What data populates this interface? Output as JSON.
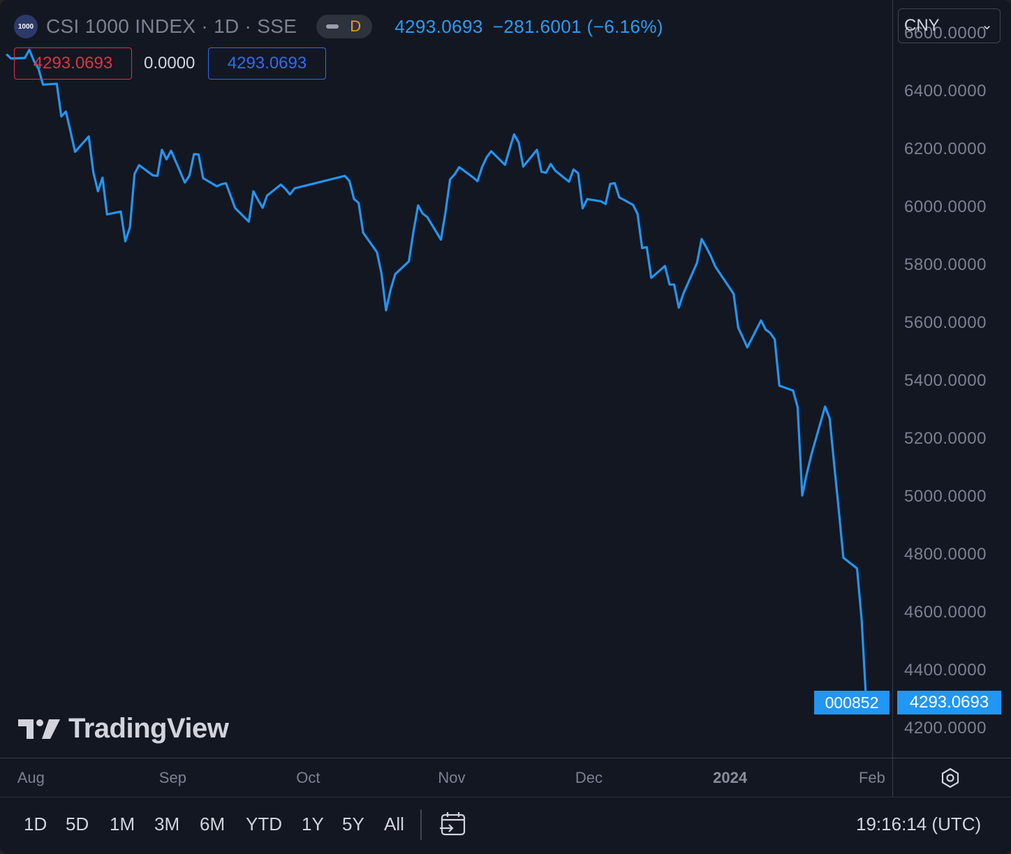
{
  "header": {
    "logo_text": "1000",
    "title": "CSI 1000 INDEX · 1D · SSE",
    "interval_letter": "D",
    "last_price": "4293.0693",
    "change": "−281.6001 (−6.16%)"
  },
  "badges": {
    "red": "4293.0693",
    "middle": "0.0000",
    "blue": "4293.0693"
  },
  "currency": "CNY",
  "last_label": "000852",
  "last_price_label": "4293.0693",
  "brand": "TradingView",
  "colors": {
    "background": "#131722",
    "line": "#2196f3",
    "text_muted": "#7d8190",
    "red": "#e5313f",
    "blue": "#2e6cf6"
  },
  "toolbar": {
    "ranges": [
      "1D",
      "5D",
      "1M",
      "3M",
      "6M",
      "YTD",
      "1Y",
      "5Y",
      "All"
    ],
    "clock": "19:16:14 (UTC)"
  },
  "chart_data": {
    "type": "line",
    "title": "CSI 1000 INDEX · 1D · SSE",
    "xlabel": "",
    "ylabel": "",
    "ylim": [
      4100,
      6715
    ],
    "grid": false,
    "y_ticks": [
      "6600.0000",
      "6400.0000",
      "6200.0000",
      "6000.0000",
      "5800.0000",
      "5600.0000",
      "5400.0000",
      "5200.0000",
      "5000.0000",
      "4800.0000",
      "4600.0000",
      "4400.0000",
      "4200.0000"
    ],
    "x_ticks": [
      {
        "label": "Aug",
        "date": "2023-08-01"
      },
      {
        "label": "Sep",
        "date": "2023-09-01"
      },
      {
        "label": "Oct",
        "date": "2023-10-01"
      },
      {
        "label": "Nov",
        "date": "2023-11-01"
      },
      {
        "label": "Dec",
        "date": "2023-12-01"
      },
      {
        "label": "2024",
        "date": "2024-01-01",
        "bold": true
      },
      {
        "label": "Feb",
        "date": "2024-02-01"
      }
    ],
    "series": [
      {
        "name": "000852",
        "points": [
          [
            "2023-07-27",
            6528
          ],
          [
            "2023-07-28",
            6513
          ],
          [
            "2023-07-31",
            6515
          ],
          [
            "2023-08-01",
            6543
          ],
          [
            "2023-08-02",
            6505
          ],
          [
            "2023-08-03",
            6478
          ],
          [
            "2023-08-04",
            6423
          ],
          [
            "2023-08-07",
            6426
          ],
          [
            "2023-08-08",
            6313
          ],
          [
            "2023-08-09",
            6330
          ],
          [
            "2023-08-10",
            6262
          ],
          [
            "2023-08-11",
            6191
          ],
          [
            "2023-08-14",
            6244
          ],
          [
            "2023-08-15",
            6120
          ],
          [
            "2023-08-16",
            6055
          ],
          [
            "2023-08-17",
            6102
          ],
          [
            "2023-08-18",
            5975
          ],
          [
            "2023-08-21",
            5985
          ],
          [
            "2023-08-22",
            5882
          ],
          [
            "2023-08-23",
            5931
          ],
          [
            "2023-08-24",
            6115
          ],
          [
            "2023-08-25",
            6145
          ],
          [
            "2023-08-28",
            6110
          ],
          [
            "2023-08-29",
            6108
          ],
          [
            "2023-08-30",
            6198
          ],
          [
            "2023-08-31",
            6165
          ],
          [
            "2023-09-01",
            6195
          ],
          [
            "2023-09-04",
            6085
          ],
          [
            "2023-09-05",
            6109
          ],
          [
            "2023-09-06",
            6183
          ],
          [
            "2023-09-07",
            6182
          ],
          [
            "2023-09-08",
            6100
          ],
          [
            "2023-09-11",
            6072
          ],
          [
            "2023-09-12",
            6079
          ],
          [
            "2023-09-13",
            6083
          ],
          [
            "2023-09-14",
            6040
          ],
          [
            "2023-09-15",
            5997
          ],
          [
            "2023-09-18",
            5950
          ],
          [
            "2023-09-19",
            6055
          ],
          [
            "2023-09-20",
            6025
          ],
          [
            "2023-09-21",
            5998
          ],
          [
            "2023-09-22",
            6040
          ],
          [
            "2023-09-25",
            6078
          ],
          [
            "2023-09-26",
            6063
          ],
          [
            "2023-09-27",
            6044
          ],
          [
            "2023-09-28",
            6065
          ],
          [
            "2023-10-09",
            6108
          ],
          [
            "2023-10-10",
            6090
          ],
          [
            "2023-10-11",
            6028
          ],
          [
            "2023-10-12",
            6015
          ],
          [
            "2023-10-13",
            5912
          ],
          [
            "2023-10-16",
            5845
          ],
          [
            "2023-10-17",
            5772
          ],
          [
            "2023-10-18",
            5644
          ],
          [
            "2023-10-19",
            5715
          ],
          [
            "2023-10-20",
            5769
          ],
          [
            "2023-10-23",
            5813
          ],
          [
            "2023-10-24",
            5916
          ],
          [
            "2023-10-25",
            6006
          ],
          [
            "2023-10-26",
            5978
          ],
          [
            "2023-10-27",
            5966
          ],
          [
            "2023-10-30",
            5888
          ],
          [
            "2023-10-31",
            5982
          ],
          [
            "2023-11-01",
            6096
          ],
          [
            "2023-11-02",
            6113
          ],
          [
            "2023-11-03",
            6138
          ],
          [
            "2023-11-06",
            6103
          ],
          [
            "2023-11-07",
            6090
          ],
          [
            "2023-11-08",
            6138
          ],
          [
            "2023-11-09",
            6172
          ],
          [
            "2023-11-10",
            6193
          ],
          [
            "2023-11-13",
            6146
          ],
          [
            "2023-11-14",
            6200
          ],
          [
            "2023-11-15",
            6251
          ],
          [
            "2023-11-16",
            6223
          ],
          [
            "2023-11-17",
            6140
          ],
          [
            "2023-11-20",
            6198
          ],
          [
            "2023-11-21",
            6122
          ],
          [
            "2023-11-22",
            6119
          ],
          [
            "2023-11-23",
            6149
          ],
          [
            "2023-11-24",
            6126
          ],
          [
            "2023-11-27",
            6088
          ],
          [
            "2023-11-28",
            6130
          ],
          [
            "2023-11-29",
            6117
          ],
          [
            "2023-11-30",
            5996
          ],
          [
            "2023-12-01",
            6028
          ],
          [
            "2023-12-04",
            6020
          ],
          [
            "2023-12-05",
            6011
          ],
          [
            "2023-12-06",
            6080
          ],
          [
            "2023-12-07",
            6083
          ],
          [
            "2023-12-08",
            6034
          ],
          [
            "2023-12-11",
            6008
          ],
          [
            "2023-12-12",
            5977
          ],
          [
            "2023-12-13",
            5859
          ],
          [
            "2023-12-14",
            5862
          ],
          [
            "2023-12-15",
            5756
          ],
          [
            "2023-12-18",
            5797
          ],
          [
            "2023-12-19",
            5733
          ],
          [
            "2023-12-20",
            5733
          ],
          [
            "2023-12-21",
            5653
          ],
          [
            "2023-12-22",
            5701
          ],
          [
            "2023-12-25",
            5808
          ],
          [
            "2023-12-26",
            5890
          ],
          [
            "2023-12-27",
            5862
          ],
          [
            "2023-12-28",
            5832
          ],
          [
            "2023-12-29",
            5795
          ],
          [
            "2024-01-02",
            5701
          ],
          [
            "2024-01-03",
            5584
          ],
          [
            "2024-01-04",
            5551
          ],
          [
            "2024-01-05",
            5516
          ],
          [
            "2024-01-08",
            5609
          ],
          [
            "2024-01-09",
            5578
          ],
          [
            "2024-01-10",
            5566
          ],
          [
            "2024-01-11",
            5544
          ],
          [
            "2024-01-12",
            5384
          ],
          [
            "2024-01-15",
            5367
          ],
          [
            "2024-01-16",
            5310
          ],
          [
            "2024-01-17",
            5005
          ],
          [
            "2024-01-18",
            5080
          ],
          [
            "2024-01-19",
            5145
          ],
          [
            "2024-01-22",
            5312
          ],
          [
            "2024-01-23",
            5271
          ],
          [
            "2024-01-24",
            5111
          ],
          [
            "2024-01-25",
            4955
          ],
          [
            "2024-01-26",
            4790
          ],
          [
            "2024-01-29",
            4753
          ],
          [
            "2024-01-30",
            4576
          ],
          [
            "2024-01-31",
            4293.0693
          ]
        ]
      }
    ]
  }
}
